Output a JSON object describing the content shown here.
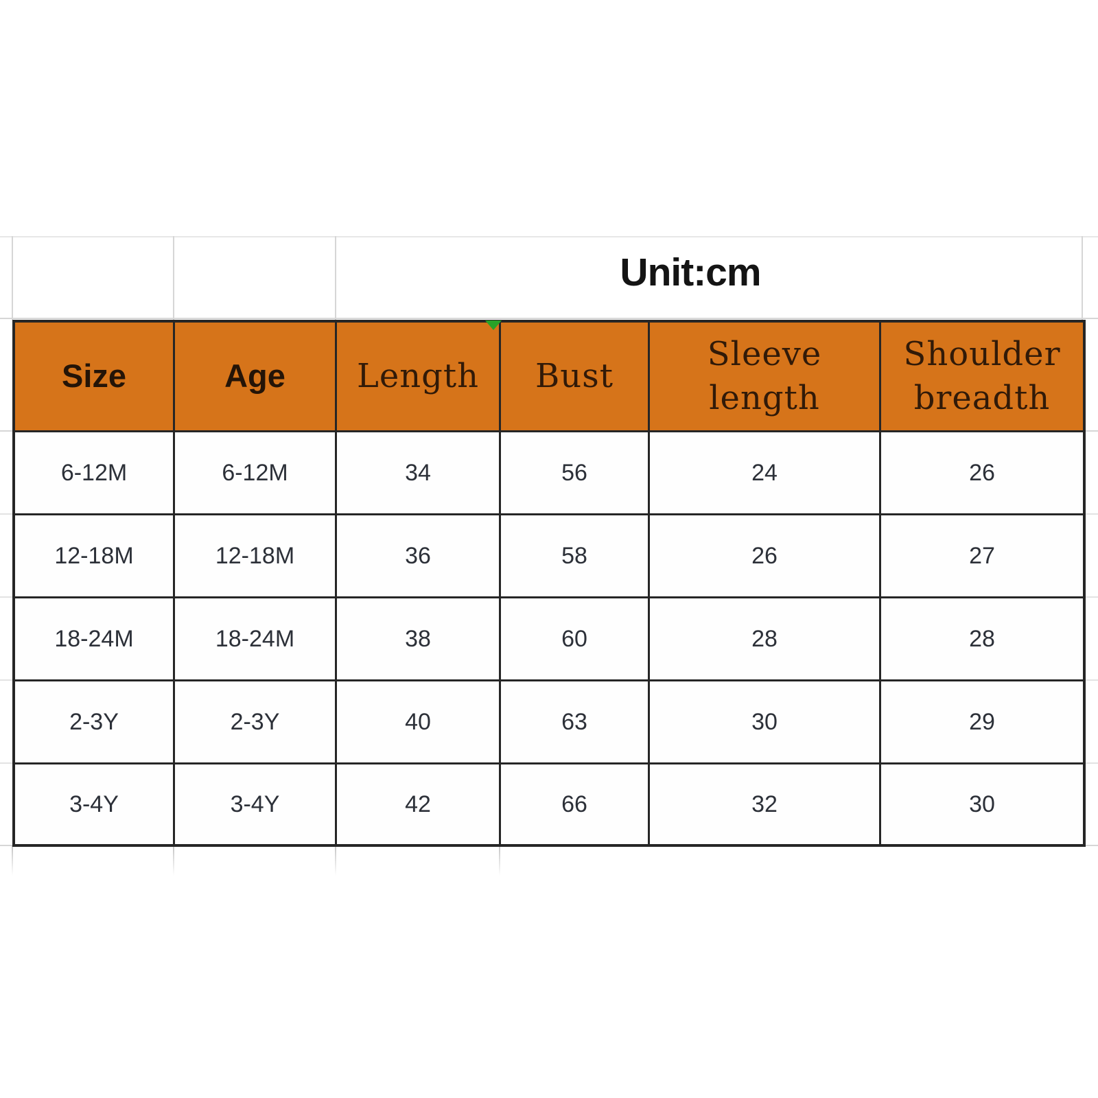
{
  "title": {
    "unit_label": "Unit:cm"
  },
  "table": {
    "columns": [
      {
        "key": "size",
        "label": "Size"
      },
      {
        "key": "age",
        "label": "Age"
      },
      {
        "key": "length",
        "label": "Length"
      },
      {
        "key": "bust",
        "label": "Bust"
      },
      {
        "key": "sleeve-length",
        "label": "Sleeve length"
      },
      {
        "key": "shoulder-breadth",
        "label": "Shoulder breadth"
      }
    ],
    "rows": [
      [
        "6-12M",
        "6-12M",
        "34",
        "56",
        "24",
        "26"
      ],
      [
        "12-18M",
        "12-18M",
        "36",
        "58",
        "26",
        "27"
      ],
      [
        "18-24M",
        "18-24M",
        "38",
        "60",
        "28",
        "28"
      ],
      [
        "2-3Y",
        "2-3Y",
        "40",
        "63",
        "30",
        "29"
      ],
      [
        "3-4Y",
        "3-4Y",
        "42",
        "66",
        "32",
        "30"
      ]
    ]
  },
  "icons": {
    "corner_marker": "green-triangle-down"
  },
  "colors": {
    "background": "#FFFFFF",
    "header_fill": "#D6741A",
    "header_text": "#311A08",
    "cell_text": "#2C3038",
    "table_border": "#262626",
    "faint_gridline": "#D6D6D6",
    "marker_green": "#28A228"
  }
}
